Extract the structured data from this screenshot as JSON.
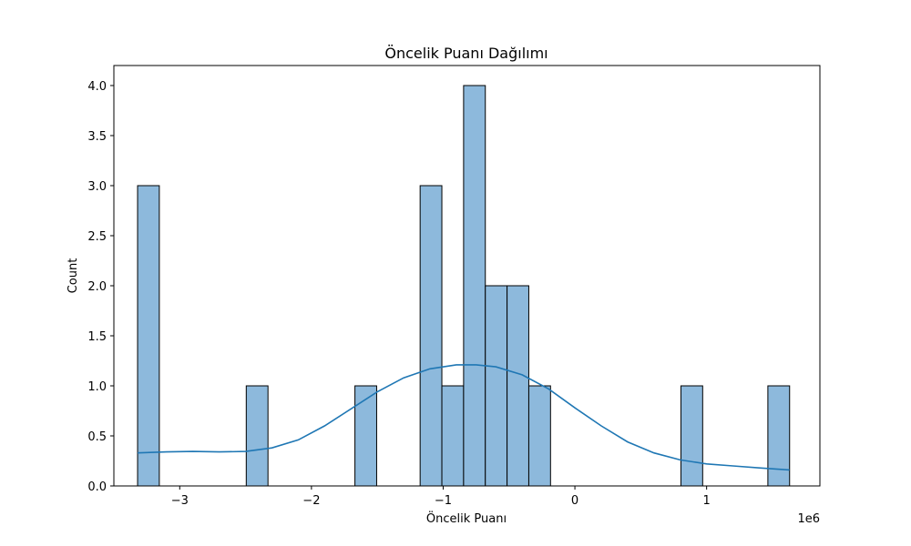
{
  "chart_data": {
    "type": "bar",
    "title": "Öncelik Puanı Dağılımı",
    "xlabel": "Öncelik Puanı",
    "ylabel": "Count",
    "x_offset_text": "1e6",
    "x_scale": 1000000,
    "xlim": [
      -3500000,
      1860000
    ],
    "ylim": [
      0,
      4.2
    ],
    "x_ticks": [
      -3000000,
      -2000000,
      -1000000,
      0,
      1000000
    ],
    "x_tick_labels": [
      "−3",
      "−2",
      "−1",
      "0",
      "1"
    ],
    "y_ticks": [
      0,
      0.5,
      1,
      1.5,
      2,
      2.5,
      3,
      3.5,
      4
    ],
    "y_tick_labels": [
      "0.0",
      "0.5",
      "1.0",
      "1.5",
      "2.0",
      "2.5",
      "3.0",
      "3.5",
      "4.0"
    ],
    "bin_edges": [
      -3320000,
      -3155000,
      -2990000,
      -2825000,
      -2660000,
      -2495000,
      -2330000,
      -2165000,
      -2000000,
      -1835000,
      -1670000,
      -1505000,
      -1340000,
      -1175000,
      -1010000,
      -845000,
      -680000,
      -515000,
      -350000,
      -185000,
      -20000,
      145000,
      310000,
      475000,
      640000,
      805000,
      970000,
      1135000,
      1300000,
      1465000,
      1630000
    ],
    "counts": [
      3,
      0,
      0,
      0,
      0,
      1,
      0,
      0,
      0,
      0,
      1,
      0,
      0,
      3,
      1,
      4,
      2,
      2,
      1,
      0,
      0,
      0,
      0,
      0,
      0,
      1,
      0,
      0,
      0,
      1
    ],
    "kde": {
      "x": [
        -3320000,
        -3100000,
        -2900000,
        -2700000,
        -2500000,
        -2300000,
        -2100000,
        -1900000,
        -1700000,
        -1500000,
        -1300000,
        -1100000,
        -900000,
        -750000,
        -600000,
        -400000,
        -200000,
        0,
        200000,
        400000,
        600000,
        800000,
        1000000,
        1200000,
        1400000,
        1630000
      ],
      "y": [
        0.33,
        0.34,
        0.345,
        0.34,
        0.345,
        0.38,
        0.46,
        0.6,
        0.77,
        0.94,
        1.08,
        1.17,
        1.21,
        1.21,
        1.19,
        1.11,
        0.97,
        0.78,
        0.6,
        0.44,
        0.33,
        0.26,
        0.22,
        0.2,
        0.18,
        0.16
      ]
    },
    "colors": {
      "bar_fill": "#8db9dc",
      "bar_edge": "#000000",
      "kde_line": "#1f77b4"
    },
    "grid": false,
    "legend": "none"
  }
}
